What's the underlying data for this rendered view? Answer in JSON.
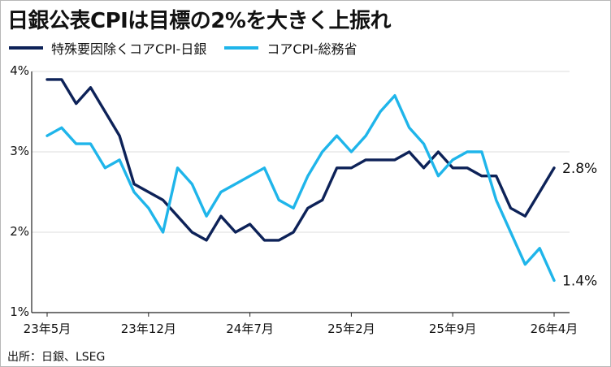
{
  "title": "日銀公表CPIは目標の2%を大きく上振れ",
  "source": "出所：日銀、LSEG",
  "chart_data": {
    "type": "line",
    "title": "日銀公表CPIは目標の2%を大きく上振れ",
    "xlabel": "",
    "ylabel": "",
    "ylim": [
      1,
      4
    ],
    "yticks": [
      "1%",
      "2%",
      "3%",
      "4%"
    ],
    "categories": [
      "23年5月",
      "23年6月",
      "23年7月",
      "23年8月",
      "23年9月",
      "23年10月",
      "23年11月",
      "23年12月",
      "24年1月",
      "24年2月",
      "24年3月",
      "24年4月",
      "24年5月",
      "24年6月",
      "24年7月",
      "24年8月",
      "24年9月",
      "24年10月",
      "24年11月",
      "24年12月",
      "25年1月",
      "25年2月",
      "25年3月",
      "25年4月",
      "25年5月",
      "25年6月",
      "25年7月",
      "25年8月",
      "25年9月",
      "25年10月",
      "25年11月",
      "25年12月",
      "26年1月",
      "26年2月",
      "26年3月",
      "26年4月"
    ],
    "x_tick_labels": [
      {
        "index": 0,
        "label": "23年5月"
      },
      {
        "index": 7,
        "label": "23年12月"
      },
      {
        "index": 14,
        "label": "24年7月"
      },
      {
        "index": 21,
        "label": "25年2月"
      },
      {
        "index": 28,
        "label": "25年9月"
      },
      {
        "index": 35,
        "label": "26年4月"
      }
    ],
    "grid": true,
    "legend_position": "top-left",
    "series": [
      {
        "name": "特殊要因除くコアCPI-日銀",
        "color": "#0d2258",
        "end_label": "2.8%",
        "values": [
          3.9,
          3.9,
          3.6,
          3.8,
          3.5,
          3.2,
          2.6,
          2.5,
          2.4,
          2.2,
          2.0,
          1.9,
          2.2,
          2.0,
          2.1,
          1.9,
          1.9,
          2.0,
          2.3,
          2.4,
          2.8,
          2.8,
          2.9,
          2.9,
          2.9,
          3.0,
          2.8,
          3.0,
          2.8,
          2.8,
          2.7,
          2.7,
          2.3,
          2.2,
          2.5,
          2.8
        ]
      },
      {
        "name": "コアCPI-総務省",
        "color": "#1fb5ea",
        "end_label": "1.4%",
        "values": [
          3.2,
          3.3,
          3.1,
          3.1,
          2.8,
          2.9,
          2.5,
          2.3,
          2.0,
          2.8,
          2.6,
          2.2,
          2.5,
          2.6,
          2.7,
          2.8,
          2.4,
          2.3,
          2.7,
          3.0,
          3.2,
          3.0,
          3.2,
          3.5,
          3.7,
          3.3,
          3.1,
          2.7,
          2.9,
          3.0,
          3.0,
          2.4,
          2.0,
          1.6,
          1.8,
          1.4
        ]
      }
    ]
  }
}
